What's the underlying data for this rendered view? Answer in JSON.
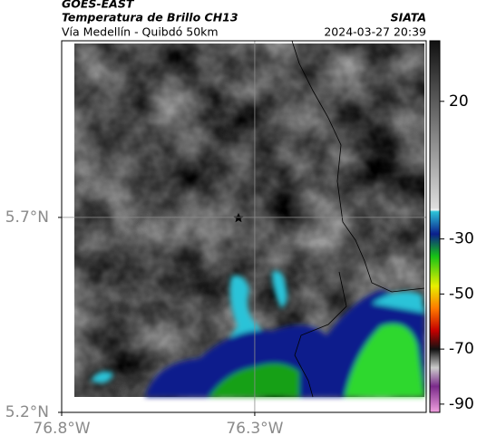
{
  "header": {
    "title": "GOES-EAST",
    "subtitle": "Temperatura de Brillo CH13",
    "source": "SIATA",
    "region": "Vía Medellín - Quibdó 50km",
    "timestamp": "2024-03-27 20:39"
  },
  "map": {
    "xlim": [
      -76.8,
      -75.856
    ],
    "ylim": [
      5.2,
      6.153
    ],
    "xticks": [
      {
        "value": -76.8,
        "label": "76.8°W"
      },
      {
        "value": -76.3,
        "label": "76.3°W"
      }
    ],
    "yticks": [
      {
        "value": 5.7,
        "label": "5.7°N"
      },
      {
        "value": 5.2,
        "label": "5.2°N"
      }
    ]
  },
  "colorbar": {
    "lim": [
      -93,
      42
    ],
    "ticks": [
      20,
      -30,
      -50,
      -70,
      -90
    ]
  }
}
